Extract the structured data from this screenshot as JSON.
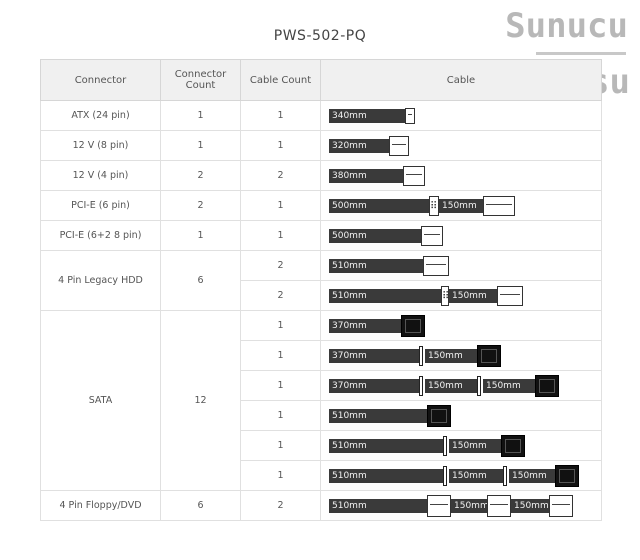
{
  "title": "PWS-502-PQ",
  "watermark": {
    "line1": "Sunucu",
    "line2": "Deposu"
  },
  "headers": {
    "connector": "Connector",
    "connector_count": "Connector Count",
    "cable_count": "Cable Count",
    "cable": "Cable"
  },
  "rows": [
    {
      "connector": "ATX (24 pin)",
      "connector_count": "1",
      "cable_count": "1",
      "length": "340mm"
    },
    {
      "connector": "12 V (8 pin)",
      "connector_count": "1",
      "cable_count": "1",
      "length": "320mm"
    },
    {
      "connector": "12 V (4 pin)",
      "connector_count": "2",
      "cable_count": "2",
      "length": "380mm"
    },
    {
      "connector": "PCI-E (6 pin)",
      "connector_count": "2",
      "cable_count": "1",
      "length": "500mm",
      "ext": [
        "150mm"
      ]
    },
    {
      "connector": "PCI-E (6+2 8 pin)",
      "connector_count": "1",
      "cable_count": "1",
      "length": "500mm"
    },
    {
      "connector": "4 Pin Legacy HDD",
      "connector_count": "6",
      "sub": [
        {
          "cable_count": "2",
          "length": "510mm"
        },
        {
          "cable_count": "2",
          "length": "510mm",
          "ext": [
            "150mm"
          ]
        }
      ]
    },
    {
      "connector": "SATA",
      "connector_count": "12",
      "sub": [
        {
          "cable_count": "1",
          "length": "370mm"
        },
        {
          "cable_count": "1",
          "length": "370mm",
          "ext": [
            "150mm"
          ]
        },
        {
          "cable_count": "1",
          "length": "370mm",
          "ext": [
            "150mm",
            "150mm"
          ]
        },
        {
          "cable_count": "1",
          "length": "510mm"
        },
        {
          "cable_count": "1",
          "length": "510mm",
          "ext": [
            "150mm"
          ]
        },
        {
          "cable_count": "1",
          "length": "510mm",
          "ext": [
            "150mm",
            "150mm"
          ]
        }
      ]
    },
    {
      "connector": "4 Pin Floppy/DVD",
      "connector_count": "6",
      "cable_count": "2",
      "length": "510mm",
      "ext": [
        "150mm",
        "150mm"
      ]
    }
  ]
}
